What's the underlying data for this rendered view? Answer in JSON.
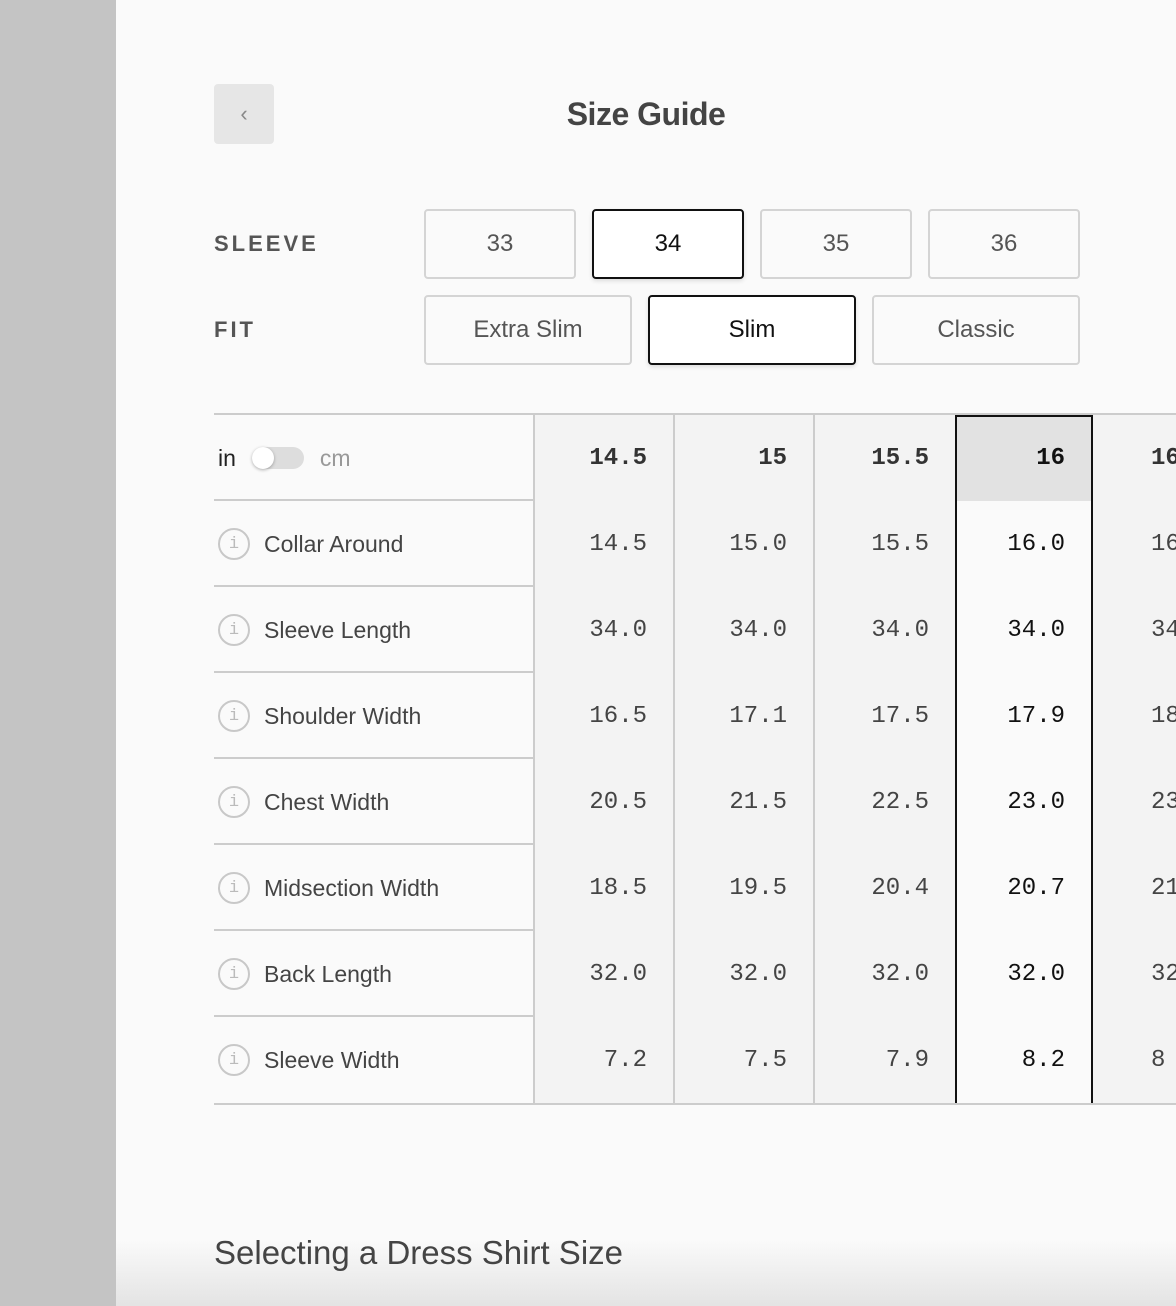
{
  "header": {
    "title": "Size Guide",
    "back_icon": "chevron-left-icon"
  },
  "sleeve": {
    "label": "SLEEVE",
    "options": [
      "33",
      "34",
      "35",
      "36"
    ],
    "selected": "34"
  },
  "fit": {
    "label": "FIT",
    "options": [
      "Extra Slim",
      "Slim",
      "Classic"
    ],
    "selected": "Slim"
  },
  "units": {
    "left": "in",
    "right": "cm",
    "selected": "in"
  },
  "table": {
    "columns": [
      "14.5",
      "15",
      "15.5",
      "16",
      "16"
    ],
    "selected_column": "16",
    "rows": [
      {
        "label": "Collar Around",
        "values": [
          "14.5",
          "15.0",
          "15.5",
          "16.0",
          "16"
        ]
      },
      {
        "label": "Sleeve Length",
        "values": [
          "34.0",
          "34.0",
          "34.0",
          "34.0",
          "34"
        ]
      },
      {
        "label": "Shoulder Width",
        "values": [
          "16.5",
          "17.1",
          "17.5",
          "17.9",
          "18"
        ]
      },
      {
        "label": "Chest Width",
        "values": [
          "20.5",
          "21.5",
          "22.5",
          "23.0",
          "23"
        ]
      },
      {
        "label": "Midsection Width",
        "values": [
          "18.5",
          "19.5",
          "20.4",
          "20.7",
          "21"
        ]
      },
      {
        "label": "Back Length",
        "values": [
          "32.0",
          "32.0",
          "32.0",
          "32.0",
          "32"
        ]
      },
      {
        "label": "Sleeve Width",
        "values": [
          "7.2",
          "7.5",
          "7.9",
          "8.2",
          "8"
        ]
      }
    ]
  },
  "section_heading": "Selecting a Dress Shirt Size"
}
